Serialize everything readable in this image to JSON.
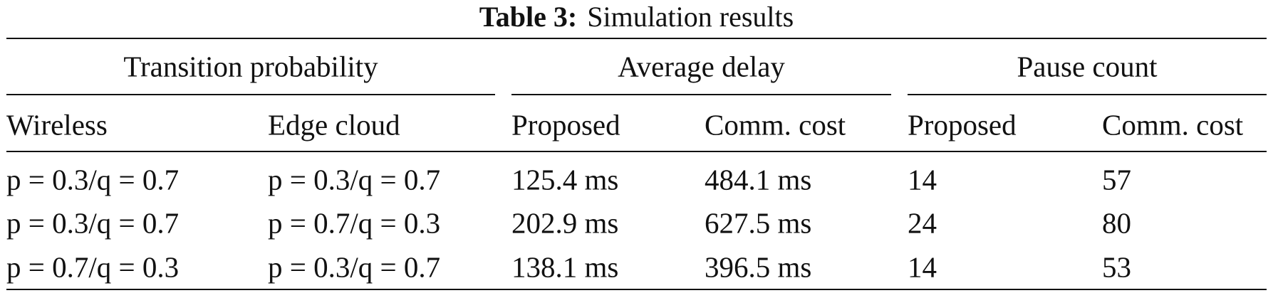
{
  "caption": {
    "label": "Table 3:",
    "text": "Simulation results"
  },
  "table": {
    "groups": [
      "Transition probability",
      "Average delay",
      "Pause count"
    ],
    "header": [
      "Wireless",
      "Edge cloud",
      "Proposed",
      "Comm. cost",
      "Proposed",
      "Comm. cost"
    ],
    "rows": [
      [
        "p = 0.3/q = 0.7",
        "p = 0.3/q = 0.7",
        "125.4 ms",
        "484.1 ms",
        "14",
        "57"
      ],
      [
        "p = 0.3/q = 0.7",
        "p = 0.7/q = 0.3",
        "202.9 ms",
        "627.5 ms",
        "24",
        "80"
      ],
      [
        "p = 0.7/q = 0.3",
        "p = 0.3/q = 0.7",
        "138.1 ms",
        "396.5 ms",
        "14",
        "53"
      ]
    ]
  }
}
